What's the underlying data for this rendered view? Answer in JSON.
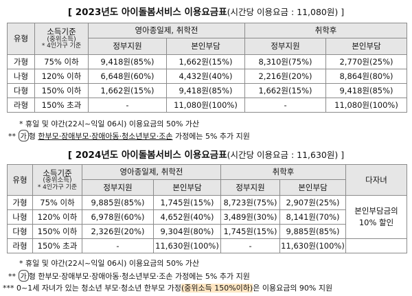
{
  "t2023": {
    "title_prefix": "[ 2023년도 아이돌봄서비스 이용요금표",
    "title_suffix": "(시간당 이용요금 : 11,080원) ]",
    "h_type": "유형",
    "h_income": "소득기준",
    "h_income_sub": "(중위소득)",
    "h_income_note": "* 4인가구 기준",
    "h_group1": "영아종일제, 취학전",
    "h_group2": "취학후",
    "h_gov": "정부지원",
    "h_self": "본인부담",
    "rows": [
      {
        "type": "가형",
        "income": "75% 이하",
        "g1": "9,418원(85%)",
        "s1": "1,662원(15%)",
        "g2": "8,310원(75%)",
        "s2": "2,770원(25%)"
      },
      {
        "type": "나형",
        "income": "120% 이하",
        "g1": "6,648원(60%)",
        "s1": "4,432원(40%)",
        "g2": "2,216원(20%)",
        "s2": "8,864원(80%)"
      },
      {
        "type": "다형",
        "income": "150% 이하",
        "g1": "1,662원(15%)",
        "s1": "9,418원(85%)",
        "g2": "1,662원(15%)",
        "s2": "9,418원(85%)"
      },
      {
        "type": "라형",
        "income": "150% 초과",
        "g1": "-",
        "s1": "11,080원(100%)",
        "g2": "-",
        "s2": "11,080원(100%)"
      }
    ],
    "note1": "* 휴일 및 야간(22시~익일 06시) 이용요금의 50% 가산",
    "note2_mark": "**",
    "note2_circle": "가",
    "note2_a": "형",
    "note2_b": "한부모·장애부모·장애아동·청소년부모·조손",
    "note2_c": "가정에는 5% 추가 지원"
  },
  "t2024": {
    "title_prefix": "[ 2024년도 아이돌봄서비스 이용요금표",
    "title_suffix": "(시간당 이용요금 : 11,630원) ]",
    "h_type": "유형",
    "h_income": "소득기준",
    "h_income_sub": "(중위소득)",
    "h_income_note": "* 4인가구 기준",
    "h_group1": "영아종일제, 취학전",
    "h_group2": "취학후",
    "h_multi": "다자녀",
    "h_gov": "정부지원",
    "h_self": "본인부담",
    "multi_text_1": "본인부담금의",
    "multi_text_2": "10% 할인",
    "rows": [
      {
        "type": "가형",
        "income": "75% 이하",
        "g1": "9,885원(85%)",
        "s1": "1,745원(15%)",
        "g2": "8,723원(75%)",
        "s2": "2,907원(25%)"
      },
      {
        "type": "나형",
        "income": "120% 이하",
        "g1": "6,978원(60%)",
        "s1": "4,652원(40%)",
        "g2": "3,489원(30%)",
        "s2": "8,141원(70%)"
      },
      {
        "type": "다형",
        "income": "150% 이하",
        "g1": "2,326원(20%)",
        "s1": "9,304원(80%)",
        "g2": "1,745원(15%)",
        "s2": "9,885원(85%)"
      },
      {
        "type": "라형",
        "income": "150% 초과",
        "g1": "-",
        "s1": "11,630원(100%)",
        "g2": "-",
        "s2": "11,630원(100%)"
      }
    ],
    "note1": "* 휴일 및 야간(22시~익일 06시) 이용요금의 50% 가산",
    "note2_mark": "**",
    "note2_circle": "가",
    "note2_a": "형 한부모·장애부모·장애아동·청소년부모·조손 가정에는 5% 추가 지원",
    "note3_a": "*** 0~1세 자녀가 있는 청소년 부모·청소년 한부모 가정",
    "note3_b": "(중위소득 150%이하)",
    "note3_c": "은 이용요금의 90% 지원"
  }
}
